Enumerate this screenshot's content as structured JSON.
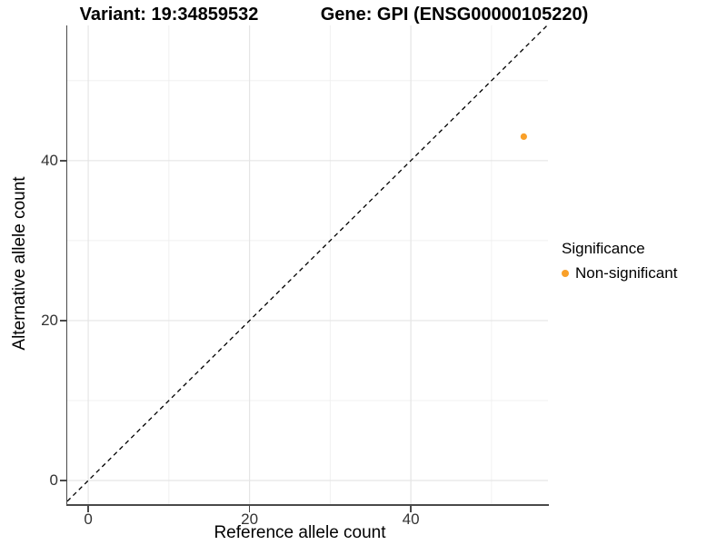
{
  "titles": {
    "variant": "Variant: 19:34859532",
    "gene": "Gene: GPI (ENSG00000105220)"
  },
  "chart_data": {
    "type": "scatter",
    "title": "Variant: 19:34859532 / Gene: GPI (ENSG00000105220)",
    "xlabel": "Reference allele count",
    "ylabel": "Alternative allele count",
    "xlim": [
      -2.6,
      57.0
    ],
    "ylim": [
      -2.95,
      56.9
    ],
    "x_ticks": [
      0,
      20,
      40
    ],
    "y_ticks": [
      0,
      20,
      40
    ],
    "x_minor_ticks": [
      10,
      30,
      50
    ],
    "y_minor_ticks": [
      10,
      30,
      50
    ],
    "grid": true,
    "identity_line": {
      "type": "y=x",
      "style": "dashed",
      "color": "#000000"
    },
    "series": [
      {
        "name": "Non-significant",
        "points": [
          {
            "x": 54,
            "y": 43
          }
        ],
        "color": "#F9A029"
      }
    ],
    "legend": {
      "position": "right",
      "title": "Significance",
      "items": [
        {
          "label": "Non-significant",
          "color": "#F9A029"
        }
      ]
    }
  },
  "colors": {
    "background": "#FFFFFF",
    "grid_major": "#E5E5E5",
    "grid_minor": "#F0F0F0",
    "axis_line": "#4A4A4A",
    "tick_label": "#333333",
    "point": "#F9A029",
    "dashed_line": "#000000"
  }
}
